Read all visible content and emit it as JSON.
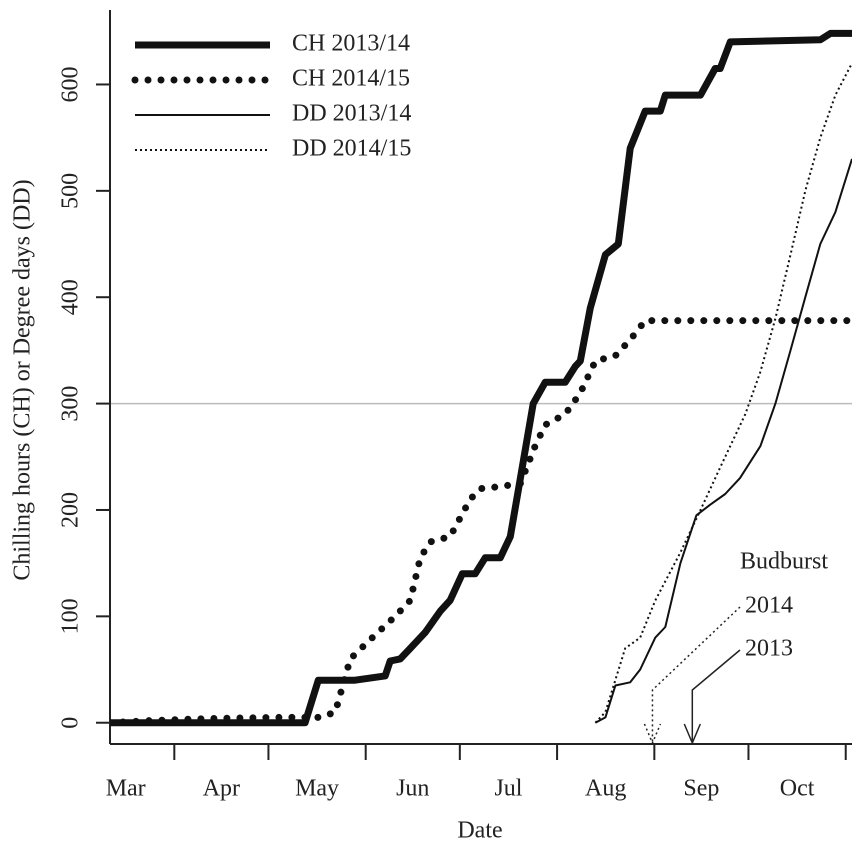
{
  "chart_data": {
    "type": "line",
    "xlabel": "Date",
    "ylabel": "Chilling hours (CH) or Degree days (DD)",
    "xlim": [
      10.5,
      247
    ],
    "xticks": [
      31,
      61,
      92,
      122,
      153,
      184,
      214,
      245
    ],
    "month_labels": [
      {
        "value": 15.5,
        "label": "Mar"
      },
      {
        "value": 46,
        "label": "Apr"
      },
      {
        "value": 76.5,
        "label": "May"
      },
      {
        "value": 107,
        "label": "Jun"
      },
      {
        "value": 137.5,
        "label": "Jul"
      },
      {
        "value": 168.5,
        "label": "Aug"
      },
      {
        "value": 199,
        "label": "Sep"
      },
      {
        "value": 229.5,
        "label": "Oct"
      }
    ],
    "ylim": [
      -20,
      670
    ],
    "yticks": [
      0,
      100,
      200,
      300,
      400,
      500,
      600
    ],
    "hline": 300,
    "hline_color": "#bbbbbb",
    "legend": "top-left",
    "series": [
      {
        "name": "CH 2013/14",
        "color": "#111111",
        "line_width": "thick",
        "line_style": "solid",
        "x": [
          10.5,
          72.7,
          76.9,
          88.6,
          98.2,
          99.8,
          103,
          106.2,
          111,
          115.8,
          118.9,
          122.8,
          126.9,
          130.1,
          134.9,
          138.1,
          141.3,
          145.4,
          149.2,
          155.6,
          158.8,
          160.4,
          163.6,
          168.4,
          172.5,
          176.3,
          181.1,
          185.9,
          187.5,
          198.7,
          203.4,
          205,
          208.2,
          236.9,
          240.1,
          247
        ],
        "values": [
          0,
          0,
          40,
          40,
          44,
          58,
          60,
          70,
          85,
          105,
          115,
          140,
          140,
          155,
          155,
          175,
          230,
          300,
          320,
          320,
          335,
          340,
          390,
          440,
          450,
          540,
          575,
          575,
          590,
          590,
          615,
          615,
          640,
          642,
          648,
          648
        ]
      },
      {
        "name": "CH 2014/15",
        "color": "#111111",
        "line_width": "thick",
        "line_style": "dotted",
        "x": [
          10.5,
          23.3,
          42.4,
          64.7,
          77.5,
          82.3,
          87.1,
          93.4,
          101.4,
          106.2,
          109.4,
          112.6,
          118.9,
          125.3,
          128.5,
          134.9,
          141.3,
          146,
          149.2,
          155.6,
          160.4,
          165.2,
          171.6,
          176.3,
          181.1,
          247
        ],
        "values": [
          0,
          2,
          4,
          5,
          5,
          10,
          60,
          78,
          100,
          115,
          155,
          170,
          175,
          210,
          220,
          222,
          225,
          260,
          280,
          290,
          310,
          340,
          345,
          360,
          378,
          378
        ]
      },
      {
        "name": "DD 2013/14",
        "color": "#111111",
        "line_width": "thin",
        "line_style": "solid",
        "x": [
          165.2,
          168.4,
          171.6,
          176.3,
          179.5,
          184.3,
          187.5,
          192.3,
          197.4,
          201.8,
          206.6,
          211.3,
          217.8,
          222.6,
          227.4,
          232.1,
          236.9,
          241.7,
          247
        ],
        "values": [
          0,
          5,
          35,
          38,
          50,
          80,
          90,
          150,
          195,
          205,
          215,
          230,
          260,
          300,
          350,
          400,
          450,
          480,
          530
        ]
      },
      {
        "name": "DD 2014/15",
        "color": "#111111",
        "line_width": "thin",
        "line_style": "dotted",
        "x": [
          165.2,
          168.4,
          174.7,
          179.5,
          184.3,
          192.3,
          198.7,
          205,
          213,
          217.8,
          222.6,
          227.4,
          232.1,
          236.9,
          241.7,
          247
        ],
        "values": [
          0,
          10,
          70,
          80,
          115,
          160,
          200,
          240,
          290,
          330,
          380,
          440,
          500,
          550,
          590,
          620
        ]
      }
    ],
    "budburst": {
      "title": "Budburst",
      "events": [
        {
          "label": "2014",
          "x": 183.4,
          "line_style": "dotted"
        },
        {
          "label": "2013",
          "x": 196.1,
          "line_style": "solid"
        }
      ]
    }
  }
}
